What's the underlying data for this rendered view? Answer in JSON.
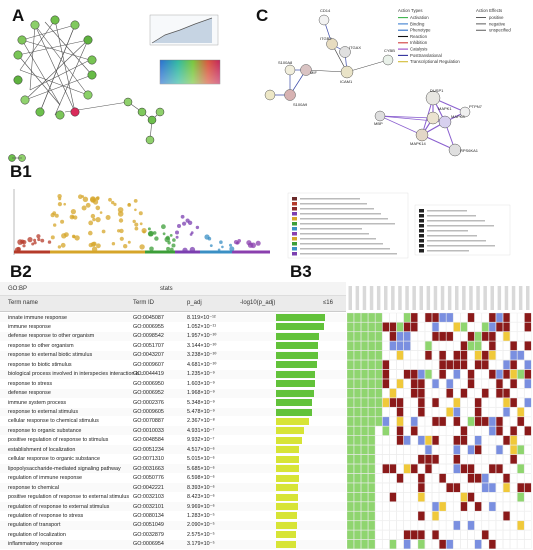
{
  "labels": {
    "A": "A",
    "B1": "B1",
    "B2": "B2",
    "B3": "B3",
    "C": "C"
  },
  "legend_c": {
    "action_types_title": "Action Types",
    "action_types": [
      "Activation",
      "Binding",
      "Phenotype",
      "Reaction",
      "Inhibition",
      "Catalysis",
      "Posttranslational",
      "Transcriptional Regulation"
    ],
    "action_effects_title": "Action Effects",
    "action_effects": [
      "positive",
      "negative",
      "unspecified"
    ]
  },
  "network_c_nodes": [
    "CD14",
    "ITGB2",
    "ITGAX",
    "ICAM1",
    "CYBB",
    "S100A8",
    "MIF",
    "S100A9",
    "DUSP1",
    "PTPN7",
    "MBP",
    "MAPK8",
    "MAPK14",
    "RPS6KA1",
    "MAPK1"
  ],
  "table": {
    "section_label": "GO:BP",
    "stats_label": "stats",
    "col_term_name": "Term name",
    "col_term_id": "Term ID",
    "col_padj": "p_adj",
    "col_log": "-log10(p_adj)",
    "col_log_max": "≤16",
    "rows": [
      {
        "name": "innate immune response",
        "id": "GO:0045087",
        "p": "8.119×10⁻¹²",
        "log": 11.09
      },
      {
        "name": "immune response",
        "id": "GO:0006955",
        "p": "1.052×10⁻¹¹",
        "log": 10.98
      },
      {
        "name": "defense response to other organism",
        "id": "GO:0098542",
        "p": "1.957×10⁻¹⁰",
        "log": 9.71
      },
      {
        "name": "response to other organism",
        "id": "GO:0051707",
        "p": "3.144×10⁻¹⁰",
        "log": 9.5
      },
      {
        "name": "response to external biotic stimulus",
        "id": "GO:0043207",
        "p": "3.238×10⁻¹⁰",
        "log": 9.49
      },
      {
        "name": "response to biotic stimulus",
        "id": "GO:0009607",
        "p": "4.681×10⁻¹⁰",
        "log": 9.33
      },
      {
        "name": "biological process involved in interspecies interaction b...",
        "id": "GO:0044419",
        "p": "1.235×10⁻⁹",
        "log": 8.91
      },
      {
        "name": "response to stress",
        "id": "GO:0006950",
        "p": "1.603×10⁻⁹",
        "log": 8.8
      },
      {
        "name": "defense response",
        "id": "GO:0006952",
        "p": "1.968×10⁻⁹",
        "log": 8.71
      },
      {
        "name": "immune system process",
        "id": "GO:0002376",
        "p": "5.348×10⁻⁹",
        "log": 8.27
      },
      {
        "name": "response to external stimulus",
        "id": "GO:0009605",
        "p": "5.478×10⁻⁹",
        "log": 8.26
      },
      {
        "name": "cellular response to chemical stimulus",
        "id": "GO:0070887",
        "p": "2.367×10⁻⁸",
        "log": 7.63
      },
      {
        "name": "response to organic substance",
        "id": "GO:0010033",
        "p": "4.931×10⁻⁷",
        "log": 6.31
      },
      {
        "name": "positive regulation of response to stimulus",
        "id": "GO:0048584",
        "p": "9.932×10⁻⁷",
        "log": 6.0
      },
      {
        "name": "establishment of localization",
        "id": "GO:0051234",
        "p": "4.517×10⁻⁶",
        "log": 5.35
      },
      {
        "name": "cellular response to organic substance",
        "id": "GO:0071310",
        "p": "5.015×10⁻⁶",
        "log": 5.3
      },
      {
        "name": "lipopolysaccharide-mediated signaling pathway",
        "id": "GO:0031663",
        "p": "5.685×10⁻⁶",
        "log": 5.25
      },
      {
        "name": "regulation of immune response",
        "id": "GO:0050776",
        "p": "6.598×10⁻⁶",
        "log": 5.18
      },
      {
        "name": "response to chemical",
        "id": "GO:0042221",
        "p": "8.393×10⁻⁶",
        "log": 5.08
      },
      {
        "name": "positive regulation of response to external stimulus",
        "id": "GO:0032103",
        "p": "8.423×10⁻⁶",
        "log": 5.07
      },
      {
        "name": "regulation of response to external stimulus",
        "id": "GO:0032101",
        "p": "9.969×10⁻⁶",
        "log": 5.0
      },
      {
        "name": "regulation of response to stress",
        "id": "GO:0080134",
        "p": "1.283×10⁻⁵",
        "log": 4.89
      },
      {
        "name": "regulation of transport",
        "id": "GO:0051049",
        "p": "2.090×10⁻⁵",
        "log": 4.68
      },
      {
        "name": "regulation of localization",
        "id": "GO:0032879",
        "p": "2.575×10⁻⁵",
        "log": 4.59
      },
      {
        "name": "inflammatory response",
        "id": "GO:0006954",
        "p": "3.179×10⁻⁵",
        "log": 4.5
      }
    ]
  },
  "colors": {
    "bar_green": "#62c23a",
    "bar_yellow": "#d7e436",
    "heat_red": "#8b1a1a",
    "heat_blue": "#7a8fe0",
    "heat_green": "#8fd56f",
    "heat_yellow": "#f0c93a",
    "heat_empty": "#ffffff"
  }
}
